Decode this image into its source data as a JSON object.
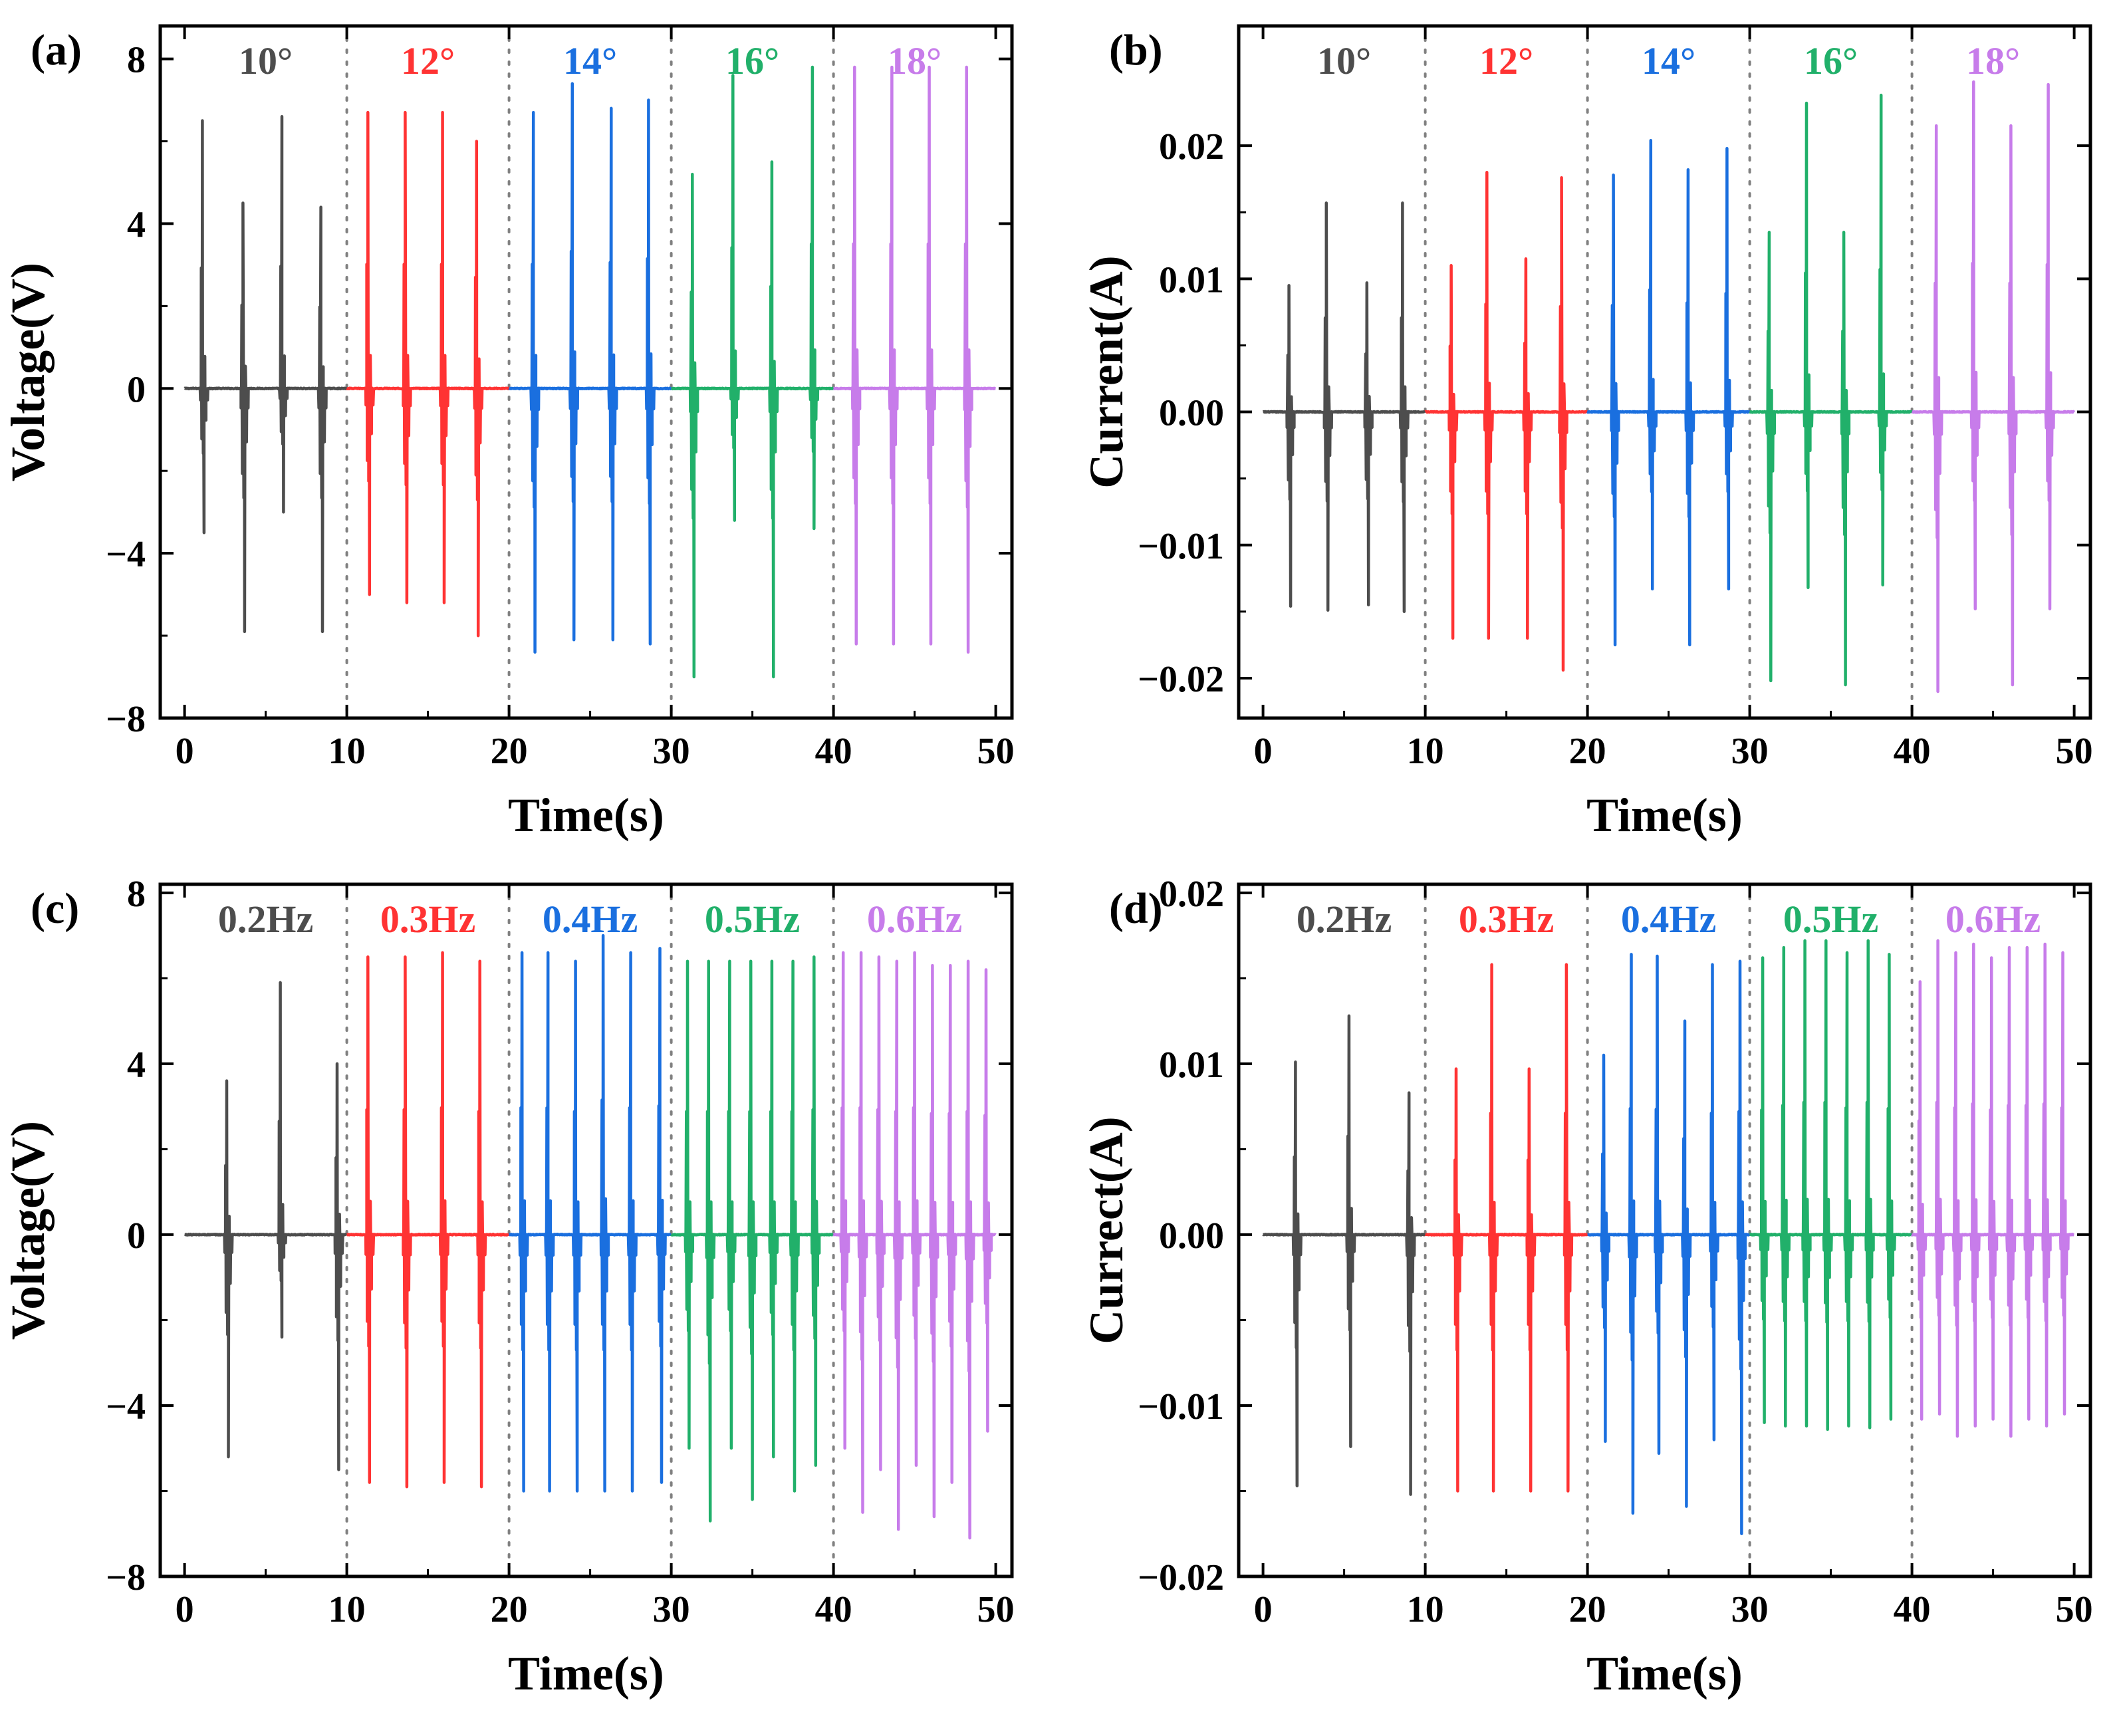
{
  "colors": {
    "gray": "#4d4d4d",
    "red": "#ff3333",
    "blue": "#1a6fdf",
    "green": "#21b06a",
    "purple": "#c77cea",
    "frame": "#000000",
    "divider": "#808080"
  },
  "chart_data": [
    {
      "id": "a",
      "type": "line",
      "panel_label": "(a)",
      "title": "",
      "xlabel": "Time(s)",
      "ylabel": "Voltage(V)",
      "xlim": [
        -1.5,
        51
      ],
      "ylim": [
        -8,
        8.8
      ],
      "xticks": [
        0,
        10,
        20,
        30,
        40,
        50
      ],
      "yticks": [
        -8,
        -4,
        0,
        4,
        8
      ],
      "ytick_labels": [
        "−8",
        "−4",
        "0",
        "4",
        "8"
      ],
      "segment_boundaries": [
        10,
        20,
        30,
        40
      ],
      "grid": false,
      "series": [
        {
          "name": "10°",
          "color_key": "gray",
          "segment": [
            0,
            10
          ],
          "pulse_times": [
            1.1,
            3.6,
            6.0,
            8.4
          ],
          "positive_peaks": [
            6.5,
            4.5,
            6.6,
            4.4
          ],
          "negative_peaks": [
            -3.5,
            -5.9,
            -3.0,
            -5.9
          ]
        },
        {
          "name": "12°",
          "color_key": "red",
          "segment": [
            10,
            20
          ],
          "pulse_times": [
            11.3,
            13.6,
            15.9,
            18.0
          ],
          "positive_peaks": [
            6.7,
            6.7,
            6.7,
            6.0
          ],
          "negative_peaks": [
            -5.0,
            -5.2,
            -5.2,
            -6.0
          ]
        },
        {
          "name": "14°",
          "color_key": "blue",
          "segment": [
            20,
            30
          ],
          "pulse_times": [
            21.5,
            23.9,
            26.3,
            28.6
          ],
          "positive_peaks": [
            6.7,
            7.4,
            6.8,
            7.0
          ],
          "negative_peaks": [
            -6.4,
            -6.1,
            -6.1,
            -6.2
          ]
        },
        {
          "name": "16°",
          "color_key": "green",
          "segment": [
            30,
            40
          ],
          "pulse_times": [
            31.3,
            33.8,
            36.2,
            38.7
          ],
          "positive_peaks": [
            5.2,
            7.6,
            5.5,
            7.8
          ],
          "negative_peaks": [
            -7.0,
            -3.2,
            -7.0,
            -3.4
          ]
        },
        {
          "name": "18°",
          "color_key": "purple",
          "segment": [
            40,
            50
          ],
          "pulse_times": [
            41.3,
            43.6,
            45.9,
            48.2
          ],
          "positive_peaks": [
            7.8,
            7.8,
            7.8,
            7.8
          ],
          "negative_peaks": [
            -6.2,
            -6.2,
            -6.2,
            -6.4
          ]
        }
      ]
    },
    {
      "id": "b",
      "type": "line",
      "panel_label": "(b)",
      "title": "",
      "xlabel": "Time(s)",
      "ylabel": "Current(A)",
      "xlim": [
        -1.5,
        51
      ],
      "ylim": [
        -0.023,
        0.029
      ],
      "xticks": [
        0,
        10,
        20,
        30,
        40,
        50
      ],
      "yticks": [
        -0.02,
        -0.01,
        0.0,
        0.01,
        0.02
      ],
      "ytick_labels": [
        "−0.02",
        "−0.01",
        "0.00",
        "0.01",
        "0.02"
      ],
      "segment_boundaries": [
        10,
        20,
        30,
        40
      ],
      "grid": false,
      "series": [
        {
          "name": "10°",
          "color_key": "gray",
          "segment": [
            0,
            10
          ],
          "pulse_times": [
            1.6,
            3.9,
            6.4,
            8.6
          ],
          "positive_peaks": [
            0.0095,
            0.0157,
            0.0097,
            0.0157
          ],
          "negative_peaks": [
            -0.0146,
            -0.0149,
            -0.0145,
            -0.015
          ]
        },
        {
          "name": "12°",
          "color_key": "red",
          "segment": [
            10,
            20
          ],
          "pulse_times": [
            11.6,
            13.8,
            16.2,
            18.4
          ],
          "positive_peaks": [
            0.011,
            0.018,
            0.0115,
            0.0176
          ],
          "negative_peaks": [
            -0.017,
            -0.017,
            -0.017,
            -0.0194
          ]
        },
        {
          "name": "14°",
          "color_key": "blue",
          "segment": [
            20,
            30
          ],
          "pulse_times": [
            21.6,
            23.9,
            26.2,
            28.6
          ],
          "positive_peaks": [
            0.0178,
            0.0204,
            0.0182,
            0.0198
          ],
          "negative_peaks": [
            -0.0175,
            -0.0133,
            -0.0175,
            -0.0133
          ]
        },
        {
          "name": "16°",
          "color_key": "green",
          "segment": [
            30,
            40
          ],
          "pulse_times": [
            31.2,
            33.5,
            35.8,
            38.1
          ],
          "positive_peaks": [
            0.0135,
            0.0232,
            0.0135,
            0.0238
          ],
          "negative_peaks": [
            -0.0202,
            -0.0132,
            -0.0205,
            -0.013
          ]
        },
        {
          "name": "18°",
          "color_key": "purple",
          "segment": [
            40,
            50
          ],
          "pulse_times": [
            41.5,
            43.8,
            46.1,
            48.4
          ],
          "positive_peaks": [
            0.0215,
            0.0248,
            0.0215,
            0.0246
          ],
          "negative_peaks": [
            -0.021,
            -0.0148,
            -0.0205,
            -0.0148
          ]
        }
      ]
    },
    {
      "id": "c",
      "type": "line",
      "panel_label": "(c)",
      "title": "",
      "xlabel": "Time(s)",
      "ylabel": "Voltage(V)",
      "xlim": [
        -1.5,
        51
      ],
      "ylim": [
        -8,
        8.2
      ],
      "xticks": [
        0,
        10,
        20,
        30,
        40,
        50
      ],
      "yticks": [
        -8,
        -4,
        0,
        4,
        8
      ],
      "ytick_labels": [
        "−8",
        "−4",
        "0",
        "4",
        "8"
      ],
      "segment_boundaries": [
        10,
        20,
        30,
        40
      ],
      "grid": false,
      "series": [
        {
          "name": "0.2Hz",
          "color_key": "gray",
          "segment": [
            0,
            10
          ],
          "pulse_times": [
            2.6,
            5.9,
            9.4
          ],
          "positive_peaks": [
            3.6,
            5.9,
            4.0
          ],
          "negative_peaks": [
            -5.2,
            -2.4,
            -5.5
          ]
        },
        {
          "name": "0.3Hz",
          "color_key": "red",
          "segment": [
            10,
            20
          ],
          "pulse_times": [
            11.3,
            13.6,
            15.9,
            18.2
          ],
          "positive_peaks": [
            6.5,
            6.5,
            6.6,
            6.4
          ],
          "negative_peaks": [
            -5.8,
            -5.9,
            -5.8,
            -5.9
          ]
        },
        {
          "name": "0.4Hz",
          "color_key": "blue",
          "segment": [
            20,
            30
          ],
          "pulse_times": [
            20.8,
            22.4,
            24.1,
            25.8,
            27.5,
            29.3
          ],
          "positive_peaks": [
            6.6,
            6.6,
            6.4,
            7.0,
            6.6,
            6.7
          ],
          "negative_peaks": [
            -6.0,
            -6.0,
            -6.0,
            -6.0,
            -6.0,
            -5.8
          ]
        },
        {
          "name": "0.5Hz",
          "color_key": "green",
          "segment": [
            30,
            40
          ],
          "pulse_times": [
            31.0,
            32.3,
            33.6,
            34.9,
            36.2,
            37.5,
            38.8
          ],
          "positive_peaks": [
            6.4,
            6.4,
            6.4,
            6.4,
            6.4,
            6.4,
            6.5
          ],
          "negative_peaks": [
            -5.0,
            -6.7,
            -5.0,
            -6.2,
            -5.2,
            -6.0,
            -5.4
          ]
        },
        {
          "name": "0.6Hz",
          "color_key": "purple",
          "segment": [
            40,
            50
          ],
          "pulse_times": [
            40.6,
            41.7,
            42.8,
            43.9,
            45.0,
            46.1,
            47.2,
            48.3,
            49.4
          ],
          "positive_peaks": [
            6.6,
            6.6,
            6.5,
            6.4,
            6.6,
            6.3,
            6.3,
            6.4,
            6.2
          ],
          "negative_peaks": [
            -5.0,
            -6.5,
            -5.5,
            -6.9,
            -5.4,
            -6.6,
            -5.8,
            -7.1,
            -4.6
          ]
        }
      ]
    },
    {
      "id": "d",
      "type": "line",
      "panel_label": "(d)",
      "title": "",
      "xlabel": "Time(s)",
      "ylabel": "Currect(A)",
      "xlim": [
        -1.5,
        51
      ],
      "ylim": [
        -0.02,
        0.0205
      ],
      "xticks": [
        0,
        10,
        20,
        30,
        40,
        50
      ],
      "yticks": [
        -0.02,
        -0.01,
        0.0,
        0.01,
        0.02
      ],
      "ytick_labels": [
        "−0.02",
        "−0.01",
        "0.00",
        "0.01",
        "0.02"
      ],
      "segment_boundaries": [
        10,
        20,
        30,
        40
      ],
      "grid": false,
      "series": [
        {
          "name": "0.2Hz",
          "color_key": "gray",
          "segment": [
            0,
            10
          ],
          "pulse_times": [
            2.0,
            5.3,
            9.0
          ],
          "positive_peaks": [
            0.0101,
            0.0128,
            0.0083
          ],
          "negative_peaks": [
            -0.0147,
            -0.0124,
            -0.0152
          ]
        },
        {
          "name": "0.3Hz",
          "color_key": "red",
          "segment": [
            10,
            20
          ],
          "pulse_times": [
            11.9,
            14.1,
            16.4,
            18.7
          ],
          "positive_peaks": [
            0.0097,
            0.0158,
            0.0097,
            0.0158
          ],
          "negative_peaks": [
            -0.015,
            -0.015,
            -0.015,
            -0.015
          ]
        },
        {
          "name": "0.4Hz",
          "color_key": "blue",
          "segment": [
            20,
            30
          ],
          "pulse_times": [
            21.0,
            22.7,
            24.3,
            26.0,
            27.7,
            29.4
          ],
          "positive_peaks": [
            0.0105,
            0.0164,
            0.0163,
            0.0125,
            0.0158,
            0.016
          ],
          "negative_peaks": [
            -0.0121,
            -0.0163,
            -0.0128,
            -0.0159,
            -0.012,
            -0.0175
          ]
        },
        {
          "name": "0.5Hz",
          "color_key": "green",
          "segment": [
            30,
            40
          ],
          "pulse_times": [
            30.8,
            32.1,
            33.4,
            34.7,
            36.0,
            37.3,
            38.6
          ],
          "positive_peaks": [
            0.0162,
            0.0168,
            0.0172,
            0.0172,
            0.0165,
            0.0172,
            0.0164
          ],
          "negative_peaks": [
            -0.011,
            -0.0112,
            -0.0112,
            -0.0114,
            -0.0112,
            -0.0113,
            -0.0108
          ]
        },
        {
          "name": "0.6Hz",
          "color_key": "purple",
          "segment": [
            40,
            50
          ],
          "pulse_times": [
            40.5,
            41.6,
            42.7,
            43.8,
            44.9,
            46.0,
            47.1,
            48.2,
            49.3
          ],
          "positive_peaks": [
            0.0148,
            0.0172,
            0.0165,
            0.017,
            0.0162,
            0.0168,
            0.0168,
            0.017,
            0.0165
          ],
          "negative_peaks": [
            -0.0108,
            -0.0105,
            -0.0118,
            -0.0112,
            -0.0108,
            -0.0118,
            -0.0108,
            -0.0112,
            -0.0105
          ]
        }
      ]
    }
  ]
}
